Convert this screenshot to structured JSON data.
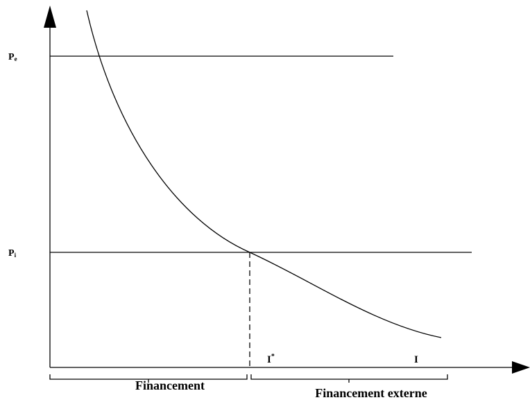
{
  "axes": {
    "price_levels": [
      {
        "label": "P",
        "subscript": "e"
      },
      {
        "label": "P",
        "subscript": "i"
      }
    ],
    "x_labels": [
      {
        "label": "I",
        "superscript": "*"
      },
      {
        "label": "I"
      }
    ]
  },
  "braces": [
    {
      "label": "Financement"
    },
    {
      "label": "Financement externe"
    }
  ]
}
